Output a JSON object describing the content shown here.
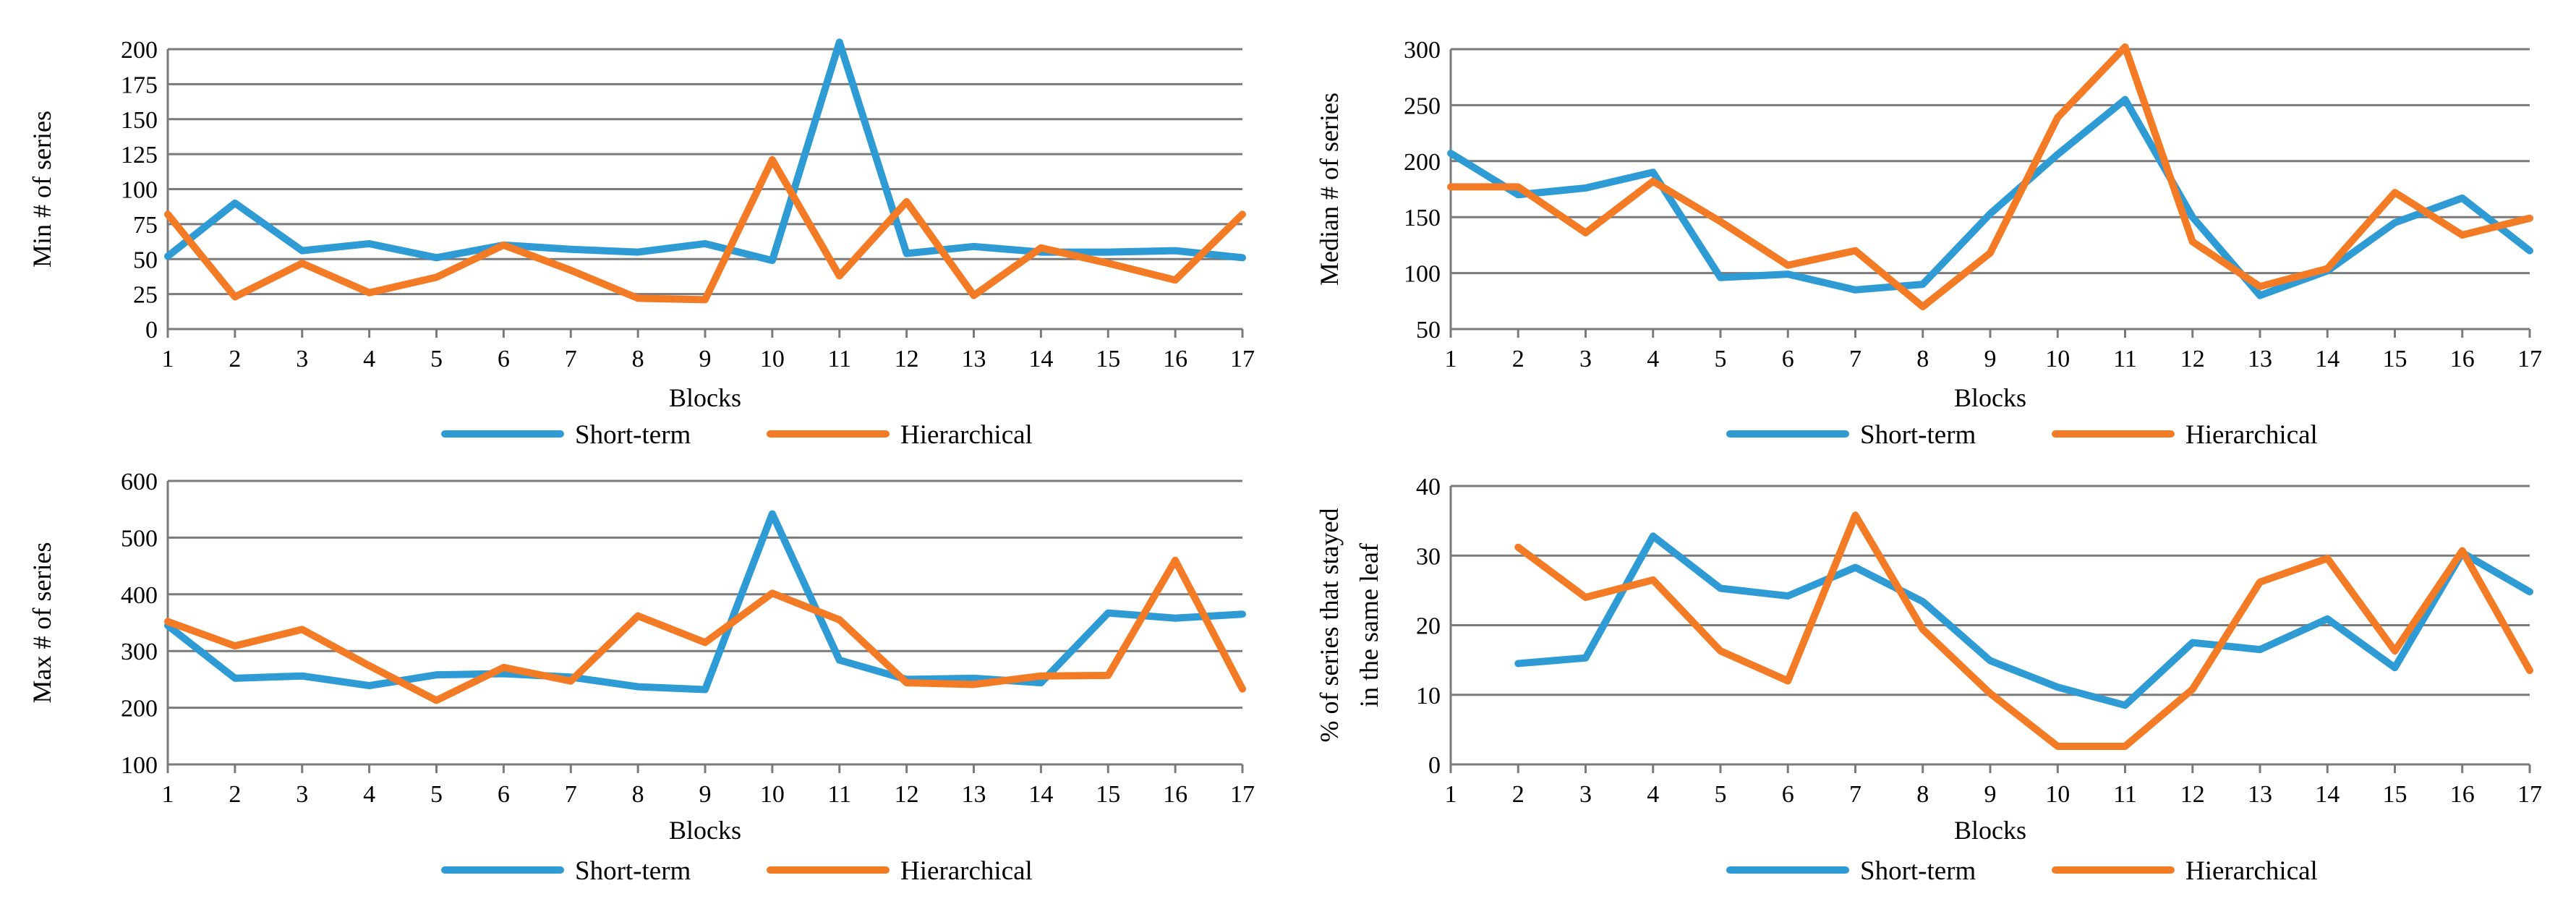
{
  "colors": {
    "short_term": "#2E9BD5",
    "hierarchical": "#F47B25"
  },
  "chart_data": [
    {
      "type": "line",
      "title": "",
      "xlabel": "Blocks",
      "ylabel": "Min # of series",
      "categories": [
        "1",
        "2",
        "3",
        "4",
        "5",
        "6",
        "7",
        "8",
        "9",
        "10",
        "11",
        "12",
        "13",
        "14",
        "15",
        "16",
        "17"
      ],
      "ylim": [
        0,
        200
      ],
      "yticks": [
        0,
        25,
        50,
        75,
        100,
        125,
        150,
        175,
        200
      ],
      "legend": "bottom",
      "series": [
        {
          "name": "Short-term",
          "values": [
            52,
            90,
            56,
            61,
            51,
            60,
            57,
            55,
            61,
            49,
            205,
            54,
            59,
            55,
            55,
            56,
            51
          ]
        },
        {
          "name": "Hierarchical",
          "values": [
            82,
            23,
            47,
            26,
            37,
            60,
            42,
            22,
            21,
            121,
            38,
            91,
            24,
            58,
            47,
            35,
            82
          ]
        }
      ]
    },
    {
      "type": "line",
      "title": "",
      "xlabel": "Blocks",
      "ylabel": "Median # of series",
      "categories": [
        "1",
        "2",
        "3",
        "4",
        "5",
        "6",
        "7",
        "8",
        "9",
        "10",
        "11",
        "12",
        "13",
        "14",
        "15",
        "16",
        "17"
      ],
      "ylim": [
        50,
        300
      ],
      "yticks": [
        50,
        100,
        150,
        200,
        250,
        300
      ],
      "legend": "bottom",
      "series": [
        {
          "name": "Short-term",
          "values": [
            207,
            170,
            176,
            190,
            96,
            99,
            85,
            90,
            153,
            206,
            255,
            150,
            80,
            102,
            145,
            167,
            120
          ]
        },
        {
          "name": "Hierarchical",
          "values": [
            177,
            177,
            136,
            182,
            146,
            107,
            120,
            70,
            118,
            239,
            302,
            128,
            88,
            104,
            172,
            134,
            149
          ]
        }
      ]
    },
    {
      "type": "line",
      "title": "",
      "xlabel": "Blocks",
      "ylabel": "Max # of series",
      "categories": [
        "1",
        "2",
        "3",
        "4",
        "5",
        "6",
        "7",
        "8",
        "9",
        "10",
        "11",
        "12",
        "13",
        "14",
        "15",
        "16",
        "17"
      ],
      "ylim": [
        100,
        600
      ],
      "yticks": [
        100,
        200,
        300,
        400,
        500,
        600
      ],
      "legend": "bottom",
      "series": [
        {
          "name": "Short-term",
          "values": [
            345,
            252,
            256,
            239,
            258,
            260,
            254,
            237,
            232,
            542,
            284,
            250,
            252,
            244,
            367,
            358,
            365
          ]
        },
        {
          "name": "Hierarchical",
          "values": [
            352,
            309,
            338,
            274,
            213,
            271,
            247,
            362,
            315,
            402,
            355,
            244,
            241,
            256,
            257,
            460,
            233
          ]
        }
      ]
    },
    {
      "type": "line",
      "title": "",
      "xlabel": "Blocks",
      "ylabel": "% of series that stayed in the same leaf",
      "ylabel_lines": [
        "% of series that stayed",
        "in the same leaf"
      ],
      "categories": [
        "1",
        "2",
        "3",
        "4",
        "5",
        "6",
        "7",
        "8",
        "9",
        "10",
        "11",
        "12",
        "13",
        "14",
        "15",
        "16",
        "17"
      ],
      "ylim": [
        0,
        40
      ],
      "yticks": [
        0,
        10,
        20,
        30,
        40
      ],
      "legend": "bottom",
      "series": [
        {
          "name": "Short-term",
          "values": [
            null,
            14.5,
            15.3,
            32.8,
            25.3,
            24.2,
            28.3,
            23.4,
            14.9,
            11.1,
            8.5,
            17.5,
            16.5,
            20.9,
            13.9,
            30.4,
            24.8
          ]
        },
        {
          "name": "Hierarchical",
          "values": [
            null,
            31.2,
            24.0,
            26.5,
            16.3,
            12.0,
            35.8,
            19.4,
            10.2,
            2.6,
            2.6,
            10.8,
            26.2,
            29.6,
            16.3,
            30.7,
            13.5
          ]
        }
      ]
    }
  ]
}
